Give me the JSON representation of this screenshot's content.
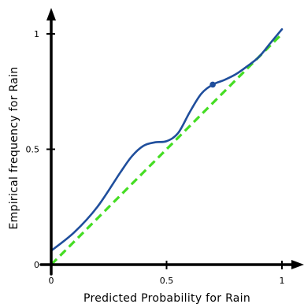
{
  "chart_data": {
    "type": "line",
    "title": "",
    "xlabel": "Predicted Probability for Rain",
    "ylabel": "Empirical frequency for Rain",
    "xlim": [
      0,
      1
    ],
    "ylim": [
      0,
      1
    ],
    "x_ticks": [
      "0",
      "0.5",
      "1"
    ],
    "y_ticks": [
      "0",
      "0.5",
      "1"
    ],
    "grid": false,
    "series": [
      {
        "role": "reference",
        "style": "dashed",
        "color": "#44dd22",
        "x": [
          0,
          1
        ],
        "y": [
          0,
          1
        ]
      },
      {
        "role": "calibration",
        "style": "solid",
        "color": "#1f4e9c",
        "x": [
          0,
          0.1,
          0.2,
          0.3,
          0.35,
          0.4,
          0.45,
          0.5,
          0.55,
          0.6,
          0.65,
          0.7,
          0.75,
          0.8,
          0.85,
          0.9,
          0.95,
          1.0
        ],
        "y": [
          0.06,
          0.14,
          0.25,
          0.4,
          0.47,
          0.515,
          0.53,
          0.535,
          0.57,
          0.66,
          0.74,
          0.78,
          0.8,
          0.825,
          0.86,
          0.9,
          0.96,
          1.02
        ]
      }
    ],
    "highlight_point": {
      "x": 0.7,
      "y": 0.78,
      "color": "#1f4e9c"
    },
    "axis_color": "#000000"
  }
}
